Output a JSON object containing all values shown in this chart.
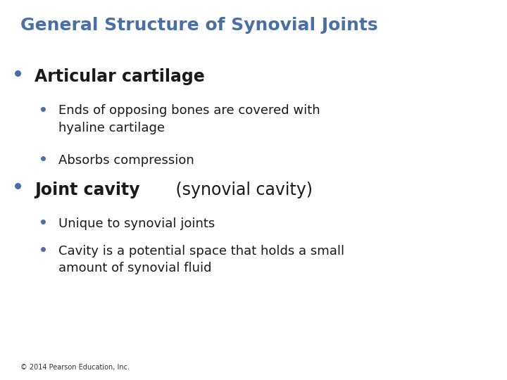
{
  "title": "General Structure of Synovial Joints",
  "title_color": "#4a6fa5",
  "title_fontsize": 18,
  "background_color": "#ffffff",
  "bullet_color": "#4a6fa5",
  "text_color": "#1a1a1a",
  "footer": "© 2014 Pearson Education, Inc.",
  "footer_fontsize": 7,
  "items": [
    {
      "level": 1,
      "text_bold": "Articular cartilage",
      "text_normal": "",
      "fontsize": 17
    },
    {
      "level": 2,
      "text_bold": "",
      "text_normal": "Ends of opposing bones are covered with\nhyaline cartilage",
      "fontsize": 13
    },
    {
      "level": 2,
      "text_bold": "",
      "text_normal": "Absorbs compression",
      "fontsize": 13
    },
    {
      "level": 1,
      "text_bold": "Joint cavity",
      "text_normal": " (synovial cavity)",
      "fontsize": 17
    },
    {
      "level": 2,
      "text_bold": "",
      "text_normal": "Unique to synovial joints",
      "fontsize": 13
    },
    {
      "level": 2,
      "text_bold": "",
      "text_normal": "Cavity is a potential space that holds a small\namount of synovial fluid",
      "fontsize": 13
    }
  ]
}
